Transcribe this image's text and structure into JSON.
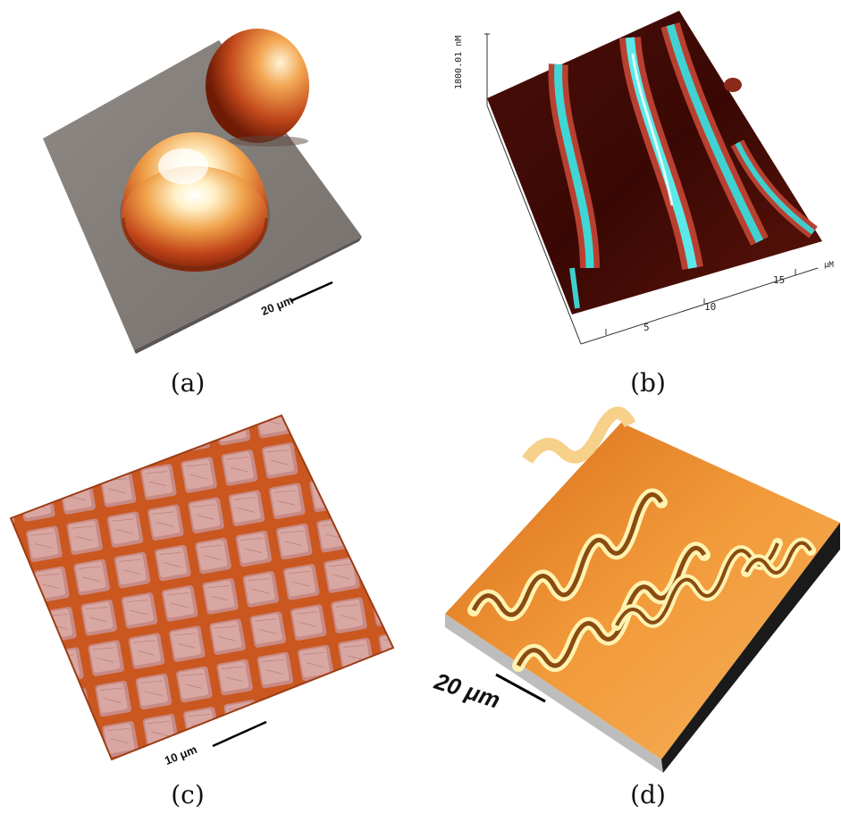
{
  "panels": [
    {
      "caption": "(a)",
      "scale_bar": "20 μm"
    },
    {
      "caption": "(b)",
      "z_max_label": "1800.01 nM",
      "x_ticks": [
        "5",
        "10",
        "15"
      ],
      "axis_unit": "μM"
    },
    {
      "caption": "(c)",
      "scale_bar": "10 μm"
    },
    {
      "caption": "(d)",
      "scale_bar": "20 μm"
    }
  ]
}
